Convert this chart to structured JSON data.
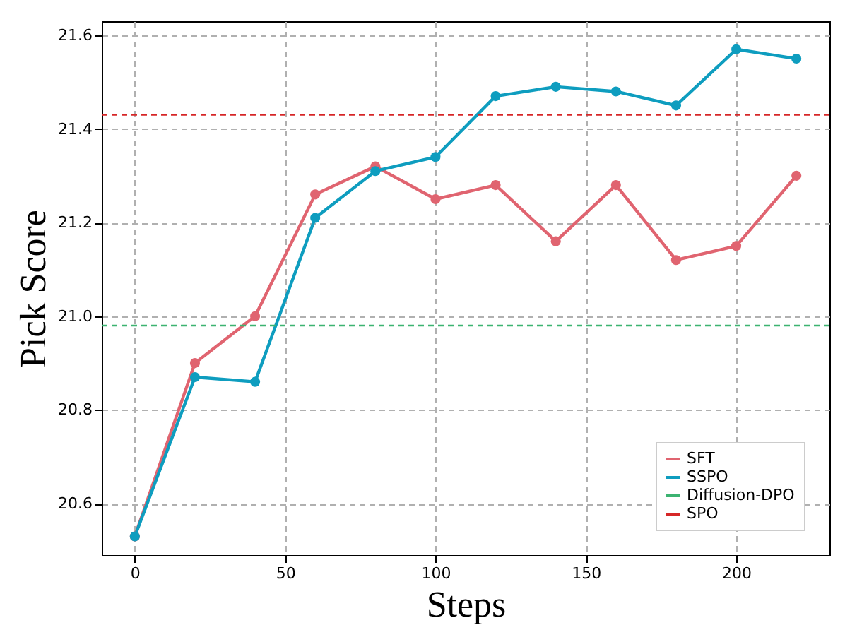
{
  "chart_data": {
    "type": "line",
    "xlabel": "Steps",
    "ylabel": "Pick Score",
    "x": [
      0,
      20,
      40,
      60,
      80,
      100,
      120,
      140,
      160,
      180,
      200,
      220
    ],
    "series": [
      {
        "name": "SFT",
        "color": "#e06470",
        "values": [
          20.53,
          20.9,
          21.0,
          21.26,
          21.32,
          21.25,
          21.28,
          21.16,
          21.28,
          21.12,
          21.15,
          21.3
        ]
      },
      {
        "name": "SSPO",
        "color": "#0e9dbf",
        "values": [
          20.53,
          20.87,
          20.86,
          21.21,
          21.31,
          21.34,
          21.47,
          21.49,
          21.48,
          21.45,
          21.57,
          21.55
        ]
      }
    ],
    "ref_lines": [
      {
        "axis": "y",
        "value": 20.98,
        "label": "Diffusion-DPO",
        "color": "#3cb371",
        "line_style": "dashed"
      },
      {
        "axis": "y",
        "value": 21.43,
        "label": "SPO",
        "color": "#d62728",
        "line_style": "dashed"
      }
    ],
    "xlim": [
      -11,
      231
    ],
    "xticks": [
      0,
      50,
      100,
      150,
      200
    ],
    "ylim": [
      20.49,
      21.63
    ],
    "yticks": [
      20.6,
      20.8,
      {
        "value": 21,
        "label": "21.0"
      },
      21.2,
      21.4,
      21.6
    ],
    "grid": true,
    "legend": "bottom right",
    "marker": "circle",
    "line_style": "solid"
  }
}
